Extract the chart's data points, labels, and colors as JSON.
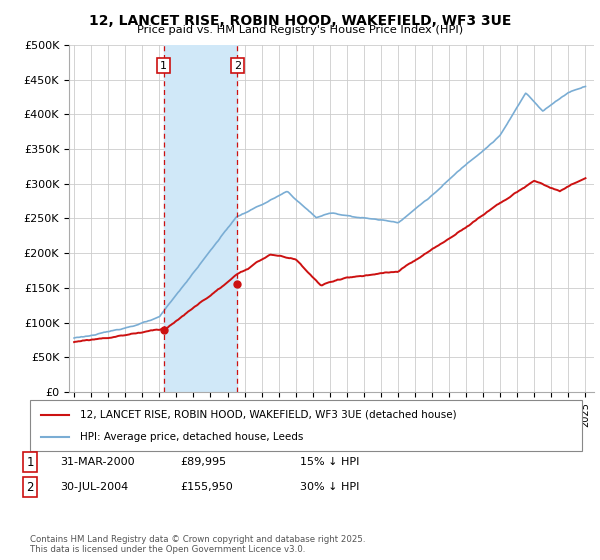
{
  "title_line1": "12, LANCET RISE, ROBIN HOOD, WAKEFIELD, WF3 3UE",
  "title_line2": "Price paid vs. HM Land Registry's House Price Index (HPI)",
  "ylim": [
    0,
    500000
  ],
  "yticks": [
    0,
    50000,
    100000,
    150000,
    200000,
    250000,
    300000,
    350000,
    400000,
    450000,
    500000
  ],
  "ytick_labels": [
    "£0",
    "£50K",
    "£100K",
    "£150K",
    "£200K",
    "£250K",
    "£300K",
    "£350K",
    "£400K",
    "£450K",
    "£500K"
  ],
  "hpi_color": "#7aadd4",
  "price_color": "#cc1111",
  "vline_color": "#cc1111",
  "shade_color": "#d0e8f8",
  "marker1_x": 2000.25,
  "marker1_y": 89995,
  "marker2_x": 2004.58,
  "marker2_y": 155950,
  "legend_label_price": "12, LANCET RISE, ROBIN HOOD, WAKEFIELD, WF3 3UE (detached house)",
  "legend_label_hpi": "HPI: Average price, detached house, Leeds",
  "copyright_text": "Contains HM Land Registry data © Crown copyright and database right 2025.\nThis data is licensed under the Open Government Licence v3.0.",
  "bg_color": "#ffffff",
  "grid_color": "#cccccc",
  "xtick_start": 1995,
  "xtick_end": 2025
}
